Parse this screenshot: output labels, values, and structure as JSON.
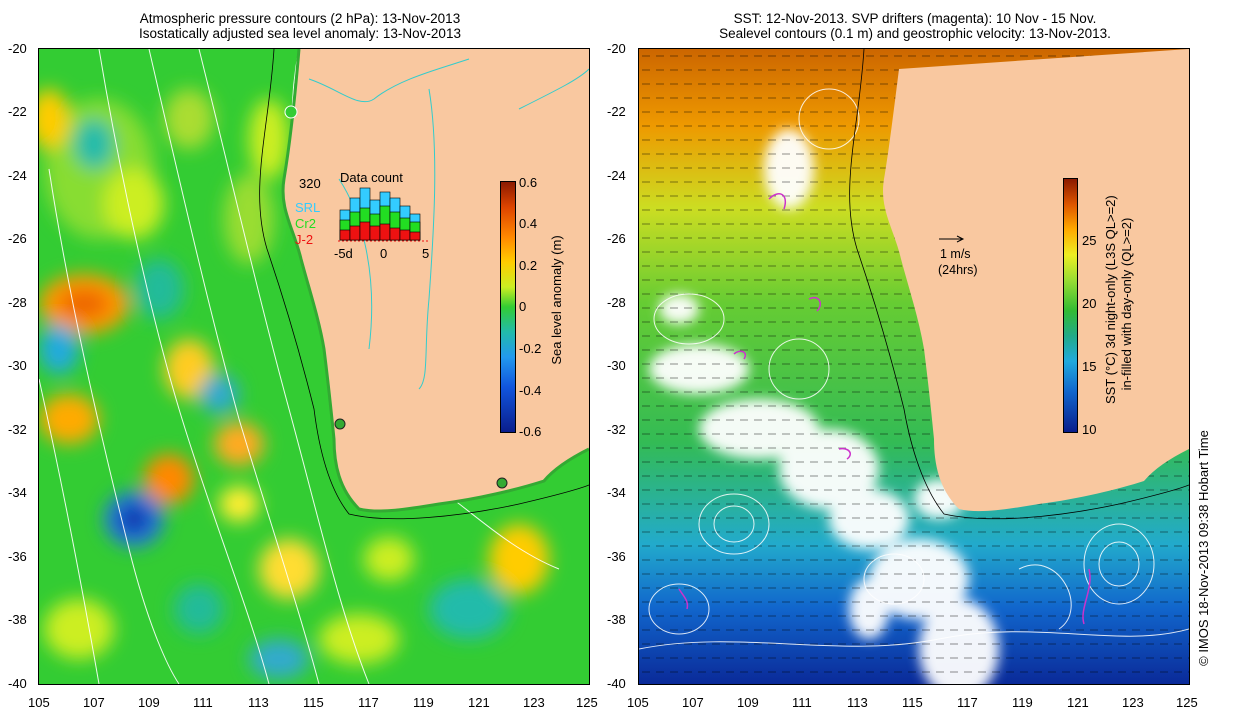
{
  "left": {
    "title_line1": "Atmospheric pressure contours (2 hPa): 13-Nov-2013",
    "title_line2": "Isostatically adjusted sea level anomaly: 13-Nov-2013",
    "colorbar_label": "Sea level anomaly (m)",
    "colorbar_ticks": [
      "0.6",
      "0.4",
      "0.2",
      "0",
      "-0.2",
      "-0.4",
      "-0.6"
    ],
    "histogram": {
      "title": "Data count",
      "ymax_label": "320",
      "legend": [
        {
          "name": "SRL",
          "color": "#33ccff"
        },
        {
          "name": "Cr2",
          "color": "#22dd22"
        },
        {
          "name": "J-2",
          "color": "#ee1111"
        }
      ],
      "xticks": [
        "-5d",
        "0",
        "5"
      ]
    }
  },
  "right": {
    "title_line1": "SST: 12-Nov-2013. SVP drifters (magenta): 10 Nov - 15 Nov.",
    "title_line2": "Sealevel contours (0.1 m) and geostrophic velocity: 13-Nov-2013.",
    "colorbar_label_line1": "SST (°C) 3d night-only (L3S QL>=2)",
    "colorbar_label_line2": "in-filled with day-only (QL>=2)",
    "colorbar_ticks": [
      "25",
      "20",
      "15",
      "10"
    ],
    "vector_scale_label": "1 m/s",
    "vector_scale_sub": "(24hrs)"
  },
  "axes": {
    "x_ticks": [
      "105",
      "107",
      "109",
      "111",
      "113",
      "115",
      "117",
      "119",
      "121",
      "123",
      "125"
    ],
    "y_ticks": [
      "-20",
      "-22",
      "-24",
      "-26",
      "-28",
      "-30",
      "-32",
      "-34",
      "-36",
      "-38",
      "-40"
    ]
  },
  "credit": "© IMOS 18-Nov-2013 09:38 Hobart Time"
}
